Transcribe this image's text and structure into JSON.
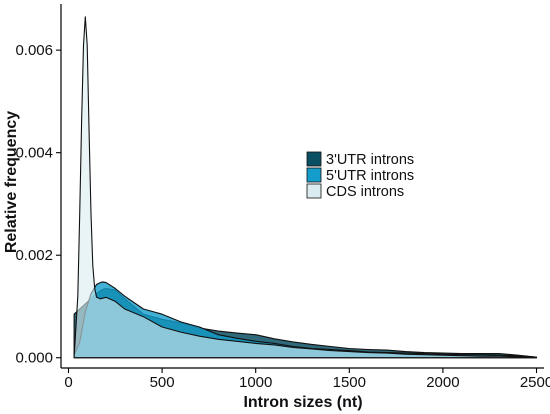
{
  "chart_data": {
    "type": "area",
    "title": "",
    "xlabel": "Intron sizes (nt)",
    "ylabel": "Relative frequency",
    "xlim": [
      -40,
      2540
    ],
    "ylim": [
      -0.0002,
      0.0069
    ],
    "xticks": [
      0,
      500,
      1000,
      1500,
      2000,
      2500
    ],
    "yticks": [
      0.0,
      0.002,
      0.004,
      0.006
    ],
    "xtick_labels": [
      "0",
      "500",
      "1000",
      "1500",
      "2000",
      "2500"
    ],
    "ytick_labels": [
      "0.000",
      "0.002",
      "0.004",
      "0.006"
    ],
    "grid": false,
    "legend_position": "center-right",
    "series": [
      {
        "name": "3'UTR introns",
        "color": "#0b4f63",
        "x": [
          30,
          60,
          90,
          120,
          150,
          180,
          200,
          250,
          300,
          400,
          500,
          600,
          700,
          800,
          900,
          1000,
          1100,
          1200,
          1300,
          1400,
          1500,
          1600,
          1700,
          1800,
          1900,
          2000,
          2100,
          2200,
          2300,
          2400,
          2500
        ],
        "y": [
          0.00085,
          0.00095,
          0.00105,
          0.00115,
          0.00125,
          0.00133,
          0.00135,
          0.00132,
          0.00115,
          0.00085,
          0.00075,
          0.00068,
          0.00058,
          0.00052,
          0.00048,
          0.00045,
          0.00037,
          0.00031,
          0.00026,
          0.00022,
          0.00018,
          0.00016,
          0.00015,
          0.00012,
          0.0001,
          9e-05,
          8e-05,
          8e-05,
          8e-05,
          5e-05,
          1e-05
        ]
      },
      {
        "name": "5'UTR introns",
        "color": "#149ccb",
        "x": [
          30,
          60,
          90,
          120,
          150,
          180,
          200,
          250,
          300,
          400,
          500,
          600,
          700,
          800,
          900,
          1000,
          1100,
          1200,
          1300,
          1400,
          1500,
          1600,
          1700,
          1800,
          1900,
          2000,
          2100,
          2200,
          2300,
          2400,
          2500
        ],
        "y": [
          5e-05,
          0.0003,
          0.0009,
          0.00125,
          0.00143,
          0.00148,
          0.00147,
          0.00135,
          0.0012,
          0.00095,
          0.00085,
          0.0007,
          0.0006,
          0.00045,
          0.00038,
          0.00032,
          0.00028,
          0.00022,
          0.00018,
          0.00016,
          0.00014,
          0.00011,
          0.0001,
          9e-05,
          8e-05,
          7e-05,
          6e-05,
          6e-05,
          5e-05,
          4e-05,
          1e-05
        ]
      },
      {
        "name": "CDS introns",
        "color": "#daecf0",
        "x": [
          30,
          50,
          60,
          70,
          80,
          90,
          100,
          110,
          120,
          130,
          140,
          150,
          170,
          200,
          250,
          300,
          400,
          500,
          600,
          700,
          800,
          900,
          1000,
          1100,
          1200,
          1300,
          1400,
          1500,
          1600,
          1700,
          1800,
          1900,
          2000,
          2100,
          2200,
          2300,
          2400,
          2500
        ],
        "y": [
          0.0,
          0.0012,
          0.0028,
          0.0046,
          0.0061,
          0.00665,
          0.0061,
          0.0044,
          0.0028,
          0.0018,
          0.00135,
          0.00118,
          0.00115,
          0.00118,
          0.0011,
          0.00095,
          0.0008,
          0.0006,
          0.0005,
          0.00042,
          0.00036,
          0.00032,
          0.00028,
          0.00025,
          0.0002,
          0.00017,
          0.00014,
          0.00012,
          0.0001,
          9e-05,
          7e-05,
          6e-05,
          5e-05,
          4e-05,
          3e-05,
          3e-05,
          2e-05,
          1e-05
        ]
      }
    ]
  }
}
